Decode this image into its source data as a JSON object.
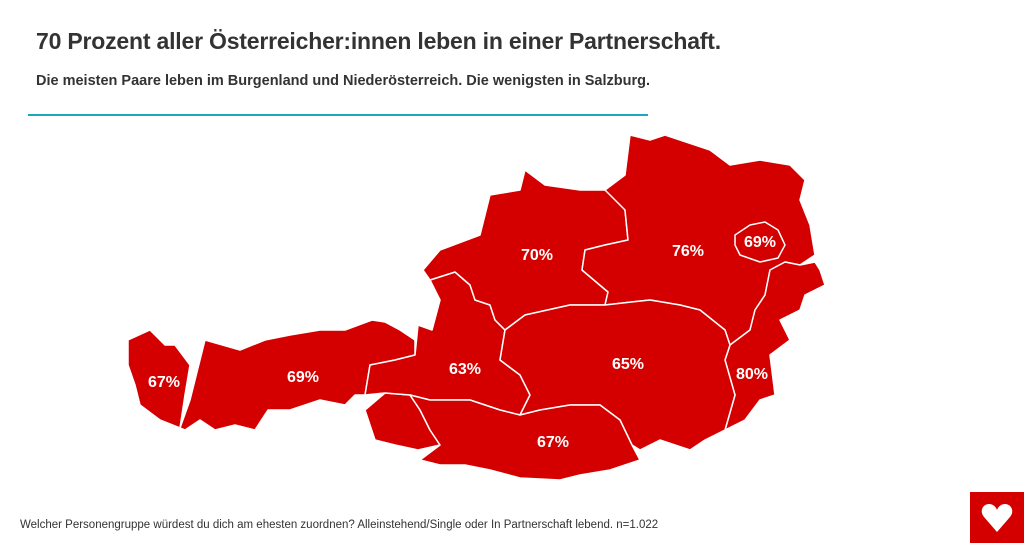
{
  "header": {
    "title": "70 Prozent aller Österreicher:innen leben in einer Partnerschaft.",
    "subtitle": "Die meisten Paare leben im Burgenland und Niederösterreich. Die wenigsten in Salzburg.",
    "accent_color": "#1aa7c0"
  },
  "map": {
    "fill_color": "#d40000",
    "regions": [
      {
        "label": "67%"
      },
      {
        "label": "69%"
      },
      {
        "label": "63%"
      },
      {
        "label": "70%"
      },
      {
        "label": "76%"
      },
      {
        "label": "69%"
      },
      {
        "label": "80%"
      },
      {
        "label": "65%"
      },
      {
        "label": "67%"
      }
    ]
  },
  "footer": {
    "note": "Welcher Personengruppe würdest du dich am ehesten zuordnen? Alleinstehend/Single oder In Partnerschaft lebend. n=1.022",
    "logo_icon": "heart-icon"
  }
}
